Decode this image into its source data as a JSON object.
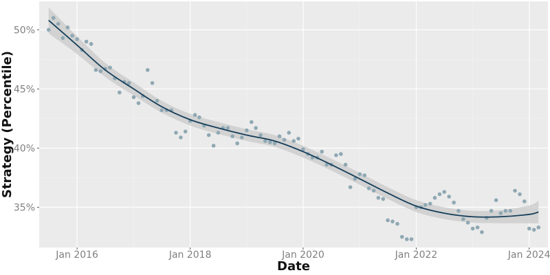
{
  "chart_data": {
    "type": "scatter",
    "title": "",
    "xlabel": "Date",
    "ylabel": "Strategy (Percentile)",
    "x_type": "date",
    "xlim": [
      "2015-05-01",
      "2024-05-01"
    ],
    "ylim": [
      31.6,
      52.4
    ],
    "x_ticks": [
      {
        "date": "2016-01-01",
        "label": "Jan 2016"
      },
      {
        "date": "2018-01-01",
        "label": "Jan 2018"
      },
      {
        "date": "2020-01-01",
        "label": "Jan 2020"
      },
      {
        "date": "2022-01-01",
        "label": "Jan 2022"
      },
      {
        "date": "2024-01-01",
        "label": "Jan 2024"
      }
    ],
    "y_ticks": [
      {
        "value": 35,
        "label": "35%"
      },
      {
        "value": 40,
        "label": "40%"
      },
      {
        "value": 45,
        "label": "45%"
      },
      {
        "value": 50,
        "label": "50%"
      }
    ],
    "grid": true,
    "legend": "none",
    "colors": {
      "panel": "#ebebeb",
      "grid_major": "#ffffff",
      "grid_minor": "#f4f4f4",
      "points": "#8fa8b3",
      "trend": "#143d59",
      "band": "#c9c9c9"
    },
    "series": [
      {
        "kind": "points",
        "x": [
          "2015-07-01",
          "2015-08-01",
          "2015-09-01",
          "2015-10-01",
          "2015-11-01",
          "2015-12-01",
          "2016-01-01",
          "2016-02-01",
          "2016-03-01",
          "2016-04-01",
          "2016-05-01",
          "2016-06-01",
          "2016-07-01",
          "2016-08-01",
          "2016-09-01",
          "2016-10-01",
          "2016-11-01",
          "2016-12-01",
          "2017-01-01",
          "2017-02-01",
          "2017-03-01",
          "2017-04-01",
          "2017-05-01",
          "2017-06-01",
          "2017-07-01",
          "2017-08-01",
          "2017-09-01",
          "2017-10-01",
          "2017-11-01",
          "2017-12-01",
          "2018-01-01",
          "2018-02-01",
          "2018-03-01",
          "2018-04-01",
          "2018-05-01",
          "2018-06-01",
          "2018-07-01",
          "2018-08-01",
          "2018-09-01",
          "2018-10-01",
          "2018-11-01",
          "2018-12-01",
          "2019-01-01",
          "2019-02-01",
          "2019-03-01",
          "2019-04-01",
          "2019-05-01",
          "2019-06-01",
          "2019-07-01",
          "2019-08-01",
          "2019-09-01",
          "2019-10-01",
          "2019-11-01",
          "2019-12-01",
          "2020-01-01",
          "2020-02-01",
          "2020-03-01",
          "2020-04-01",
          "2020-05-01",
          "2020-06-01",
          "2020-07-01",
          "2020-08-01",
          "2020-09-01",
          "2020-10-01",
          "2020-11-01",
          "2020-12-01",
          "2021-01-01",
          "2021-02-01",
          "2021-03-01",
          "2021-04-01",
          "2021-05-01",
          "2021-06-01",
          "2021-07-01",
          "2021-08-01",
          "2021-09-01",
          "2021-10-01",
          "2021-11-01",
          "2021-12-01",
          "2022-01-01",
          "2022-02-01",
          "2022-03-01",
          "2022-04-01",
          "2022-05-01",
          "2022-06-01",
          "2022-07-01",
          "2022-08-01",
          "2022-09-01",
          "2022-10-01",
          "2022-11-01",
          "2022-12-01",
          "2023-01-01",
          "2023-02-01",
          "2023-03-01",
          "2023-04-01",
          "2023-05-01",
          "2023-06-01",
          "2023-07-01",
          "2023-08-01",
          "2023-09-01",
          "2023-10-01",
          "2023-11-01",
          "2023-12-01",
          "2024-01-01",
          "2024-02-01",
          "2024-03-01"
        ],
        "y": [
          50.0,
          51.0,
          50.5,
          49.3,
          50.2,
          49.5,
          49.2,
          48.3,
          49.0,
          48.8,
          46.6,
          46.5,
          46.7,
          46.8,
          45.9,
          44.7,
          45.6,
          45.5,
          44.3,
          43.8,
          44.4,
          46.6,
          45.5,
          44.0,
          43.2,
          43.2,
          43.2,
          41.3,
          40.9,
          41.4,
          42.3,
          42.8,
          42.6,
          41.9,
          41.1,
          40.2,
          41.3,
          41.7,
          41.7,
          41.0,
          40.4,
          40.9,
          41.5,
          42.2,
          41.7,
          41.1,
          40.6,
          40.5,
          40.4,
          41.0,
          40.7,
          41.3,
          40.6,
          40.8,
          39.9,
          39.5,
          39.2,
          39.2,
          39.7,
          38.6,
          38.6,
          39.4,
          39.5,
          38.6,
          36.7,
          37.4,
          37.8,
          37.7,
          36.6,
          36.4,
          35.8,
          35.7,
          33.9,
          33.8,
          33.6,
          32.5,
          32.3,
          32.3,
          35.0,
          35.0,
          35.2,
          35.3,
          35.8,
          36.1,
          36.3,
          35.9,
          35.4,
          34.7,
          34.0,
          33.7,
          33.2,
          33.3,
          32.9,
          34.1,
          34.7,
          35.6,
          34.5,
          34.7,
          34.7,
          36.4,
          36.1,
          35.5,
          33.2,
          33.1,
          33.3
        ]
      },
      {
        "kind": "smooth",
        "x": [
          "2015-07-01",
          "2016-01-01",
          "2016-07-01",
          "2017-01-01",
          "2017-07-01",
          "2018-01-01",
          "2018-07-01",
          "2019-01-01",
          "2019-07-01",
          "2020-01-01",
          "2020-07-01",
          "2021-01-01",
          "2021-07-01",
          "2022-01-01",
          "2022-07-01",
          "2023-01-01",
          "2023-07-01",
          "2024-01-01",
          "2024-03-01"
        ],
        "y": [
          50.8,
          48.7,
          46.6,
          45.0,
          43.5,
          42.4,
          41.7,
          41.1,
          40.6,
          39.7,
          38.6,
          37.4,
          36.2,
          35.1,
          34.5,
          34.2,
          34.2,
          34.4,
          34.6
        ],
        "band": [
          1.1,
          0.75,
          0.6,
          0.55,
          0.5,
          0.5,
          0.5,
          0.5,
          0.5,
          0.5,
          0.5,
          0.5,
          0.5,
          0.5,
          0.5,
          0.5,
          0.55,
          0.75,
          0.95
        ]
      }
    ]
  }
}
